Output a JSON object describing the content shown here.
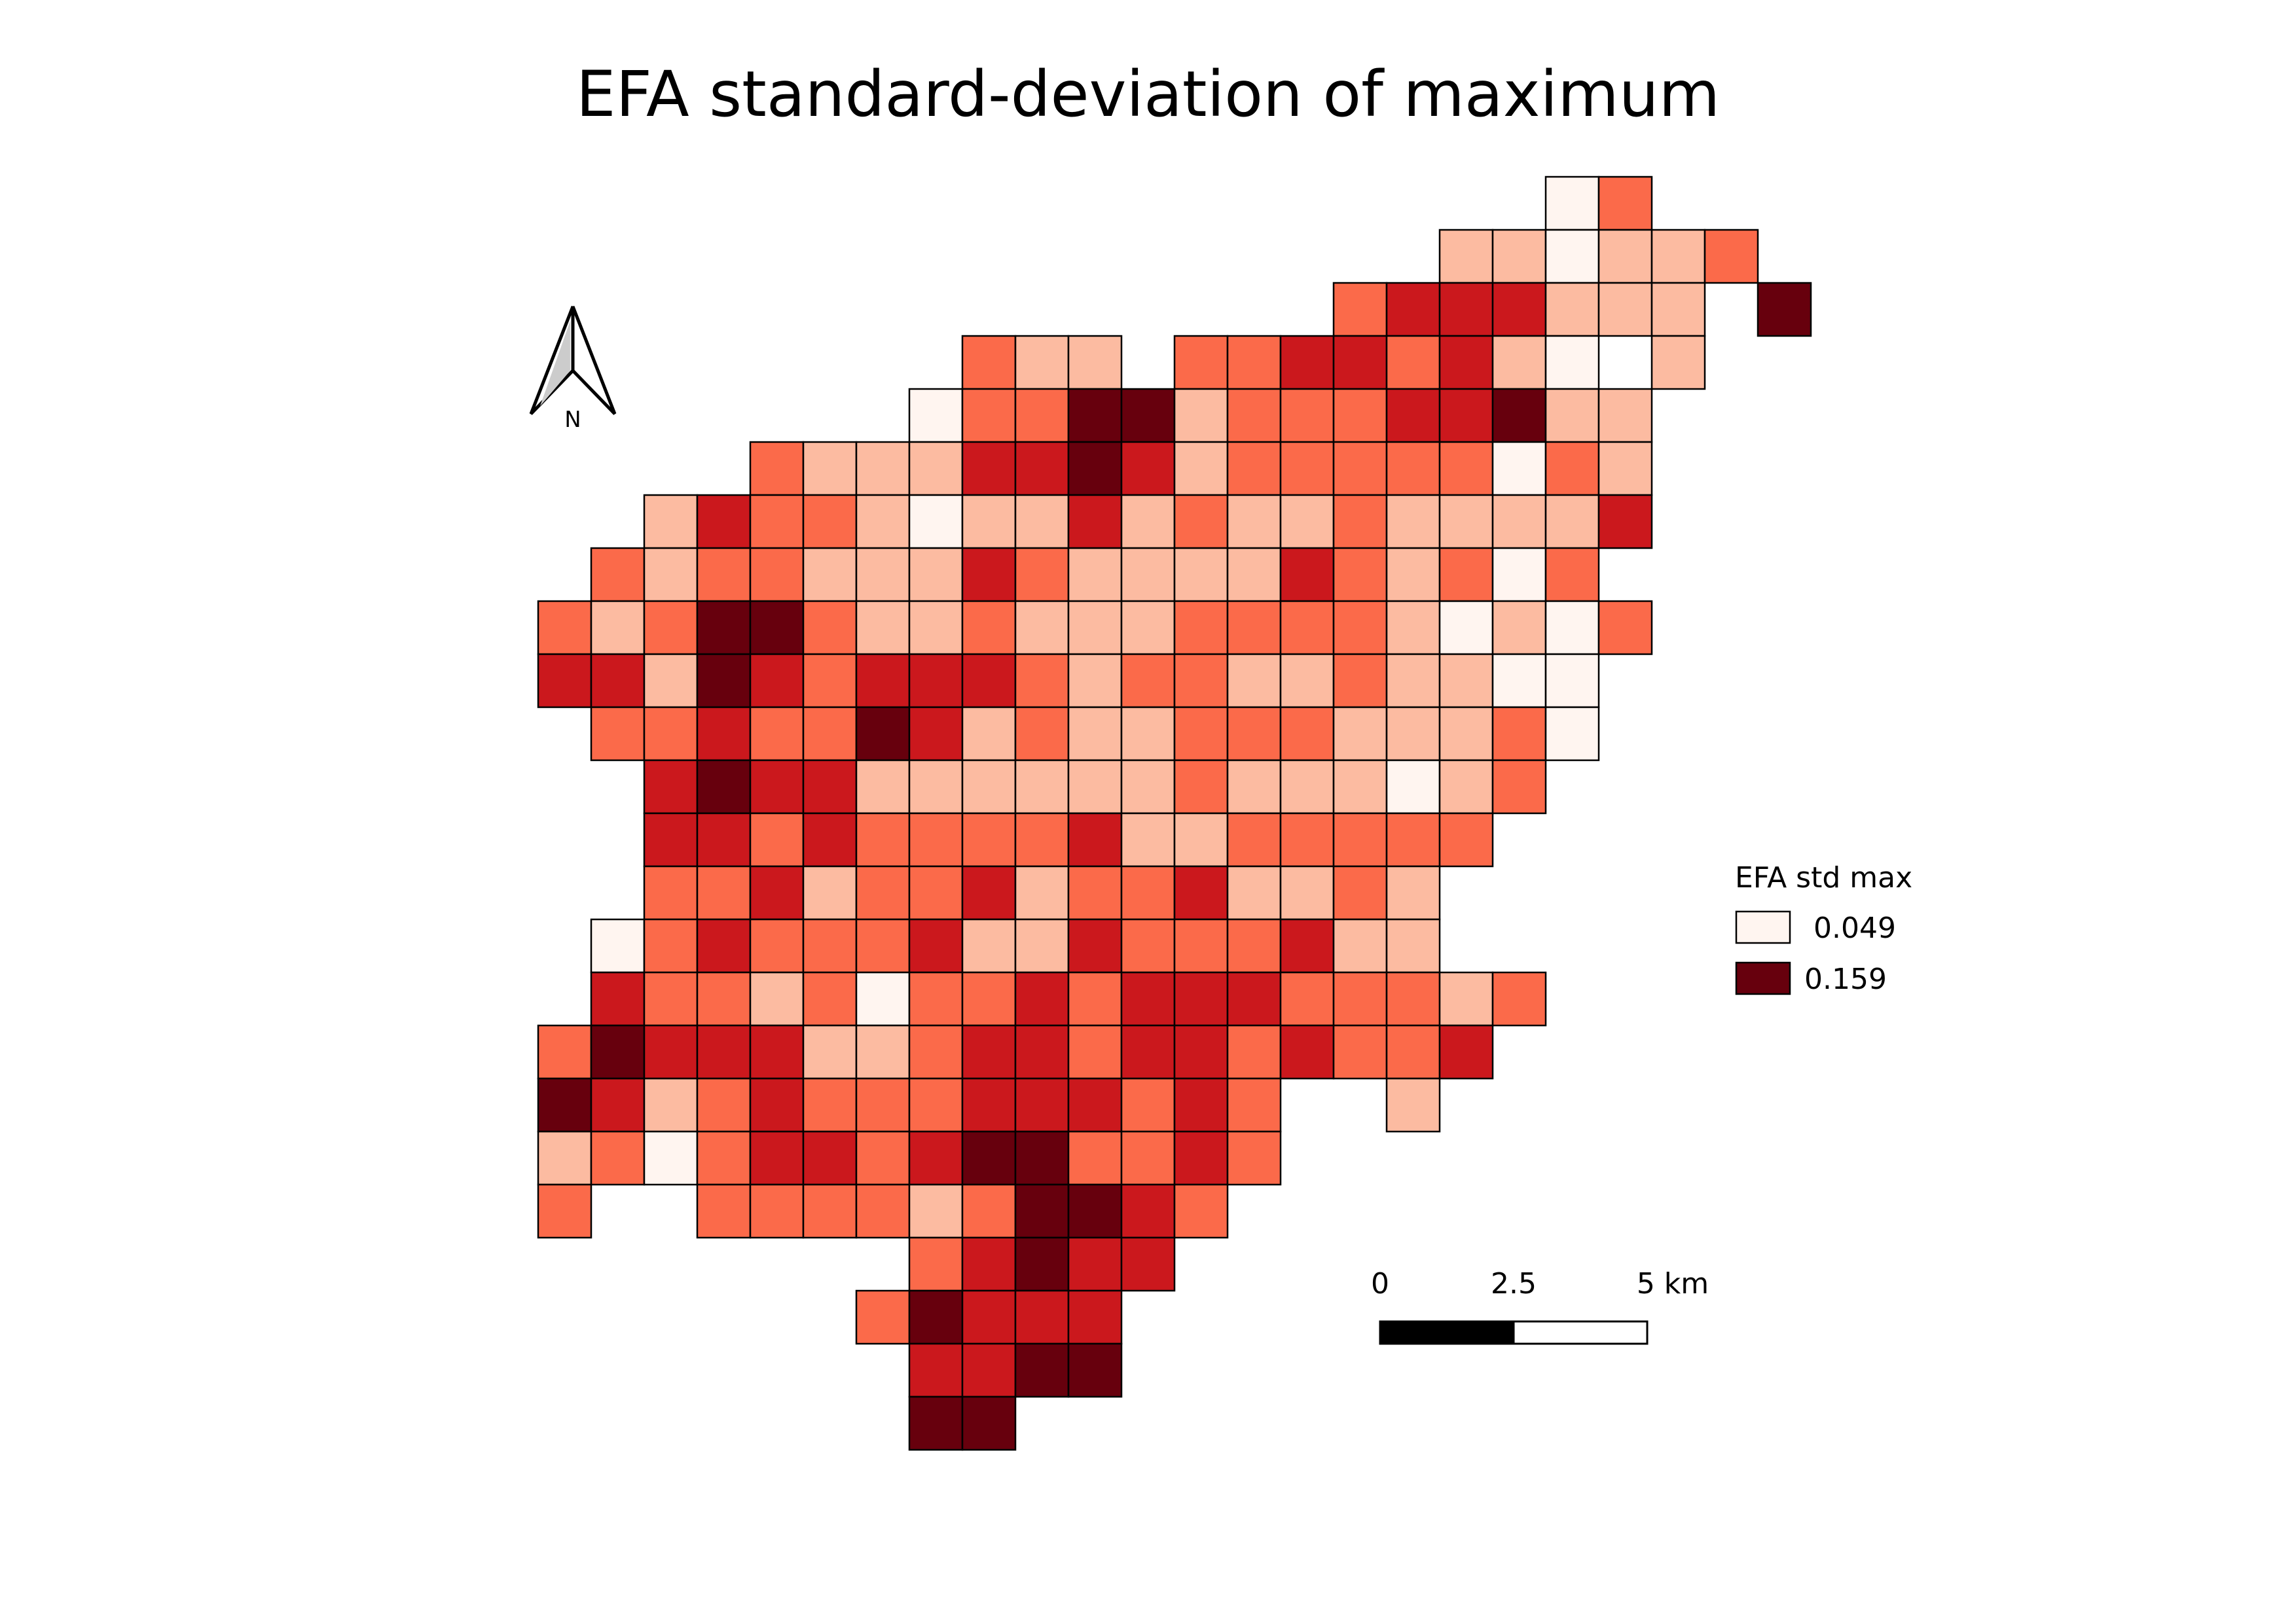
{
  "title": "EFA standard-deviation of maximum",
  "north_arrow": {
    "label": "N"
  },
  "legend": {
    "title": "EFA std max",
    "items": [
      {
        "label": "0.049",
        "color": "#fff5f0"
      },
      {
        "label": "0.159",
        "color": "#67000d"
      }
    ]
  },
  "scale_bar": {
    "labels": [
      "0",
      "2.5",
      "5 km"
    ]
  },
  "palette": [
    "#fff5f0",
    "#fcbba1",
    "#fb6a4a",
    "#cb181d",
    "#67000d"
  ],
  "grid_rows": [
    "...................wf.....",
    ".................llwllf...",
    "...............fRRRlll.D..",
    "........fll.ffRRfRlw l....",
    ".......wffDDlfffRRDll.....",
    "....flllRRDRlfffffwfl.....",
    "..lRfflwllRlfllfllllR.....",
    ".flfflllRfllllRflfwf......",
    "flfDDfllflllfffflwlwf.....",
    "RRlDRfRRRflffllfllwW......",
    ".ffRffDRlfllffflllfw......",
    "..RDRRllllllflllwlf.......",
    "..RRfRffffRllfffff........",
    "..ffRlffRlffRllfl.........",
    ".wfRfffRllRfffRll.........",
    ".RfflfwffRfRRRffflf.......",
    "fDRRRllfRRfRRfRffR........",
    "DRlfRfffRRRfRf..l.........",
    "lfwfRRfRDDffRf............",
    "f..fffflfDDRf.............",
    ".......fRDRR..............",
    "......fDRRR...............",
    ".......RRDD...............",
    ".......DD................."
  ]
}
